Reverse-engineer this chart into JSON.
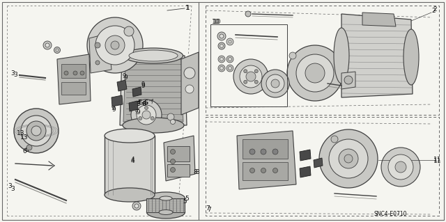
{
  "bg_color": "#f5f5f0",
  "border_color": "#666666",
  "text_color": "#111111",
  "diagram_code": "SNC4-E0710",
  "fs_label": 6.5,
  "fs_small": 5.5,
  "lw_main": 0.9,
  "lw_thin": 0.5,
  "part_color_dark": "#404040",
  "part_color_mid": "#888888",
  "part_color_light": "#cccccc",
  "part_color_fill": "#e8e8e4",
  "part_color_fill2": "#d4d4d0"
}
